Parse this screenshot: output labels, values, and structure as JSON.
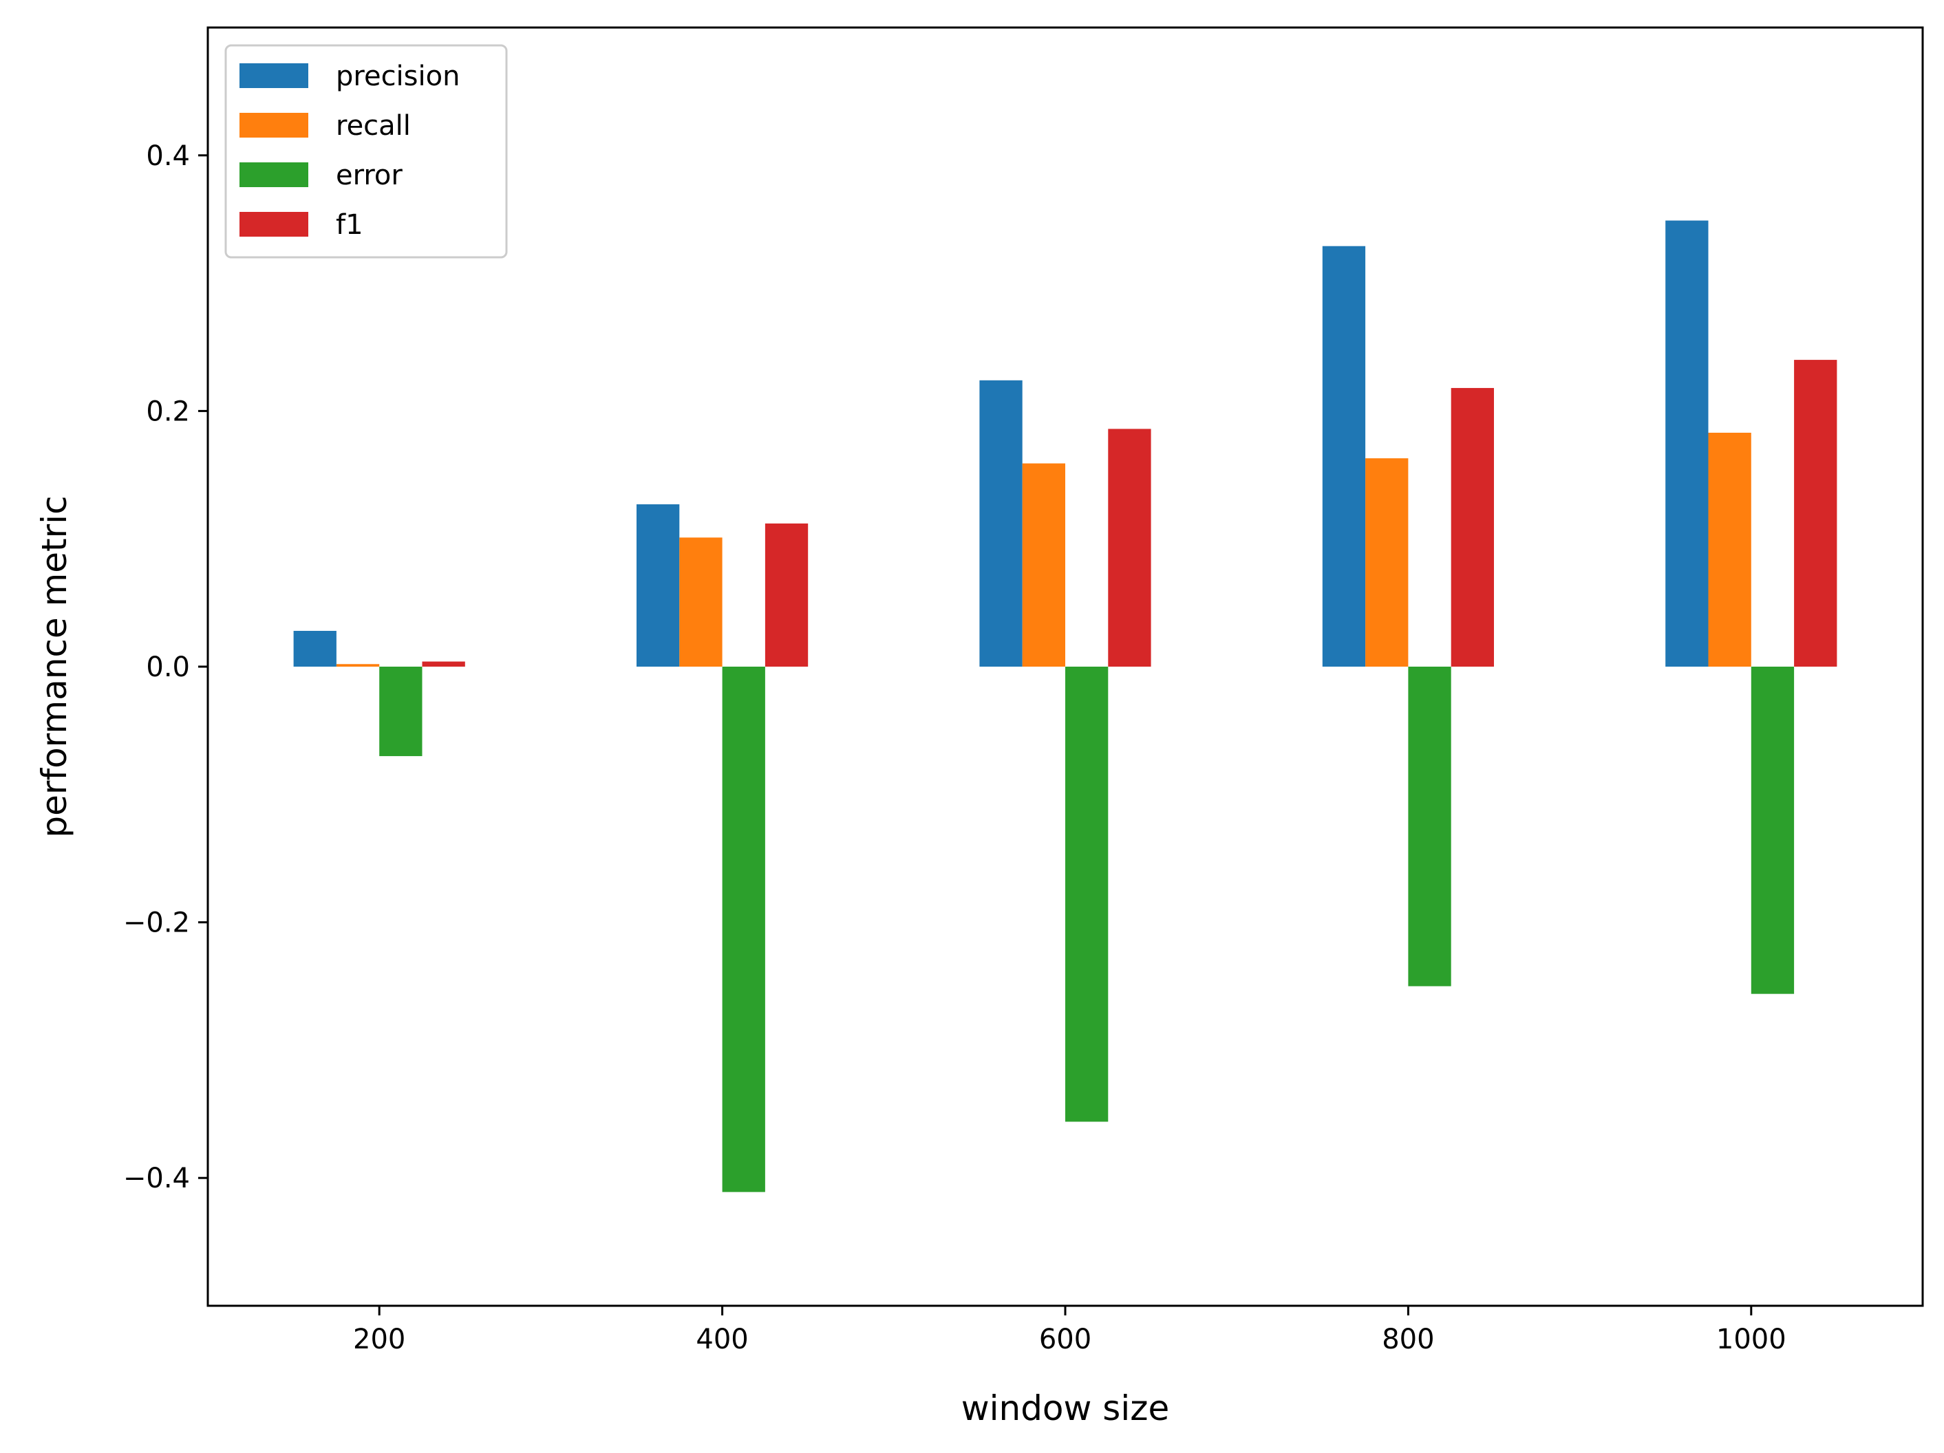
{
  "chart_data": {
    "type": "bar",
    "title": "",
    "xlabel": "window size",
    "ylabel": "performance metric",
    "x": [
      200,
      400,
      600,
      800,
      1000
    ],
    "x_tick_labels": [
      "200",
      "400",
      "600",
      "800",
      "1000"
    ],
    "xlim": [
      100,
      1100
    ],
    "ylim": [
      -0.5,
      0.5
    ],
    "y_ticks": [
      -0.4,
      -0.2,
      0.0,
      0.2,
      0.4
    ],
    "y_tick_labels": [
      "−0.4",
      "−0.2",
      "0.0",
      "0.2",
      "0.4"
    ],
    "bar_width_data": 25,
    "series": [
      {
        "name": "precision",
        "color": "#1f77b4",
        "values": [
          0.028,
          0.127,
          0.224,
          0.329,
          0.349
        ]
      },
      {
        "name": "recall",
        "color": "#ff7f0e",
        "values": [
          0.002,
          0.101,
          0.159,
          0.163,
          0.183
        ]
      },
      {
        "name": "error",
        "color": "#2ca02c",
        "values": [
          -0.07,
          -0.411,
          -0.356,
          -0.25,
          -0.256
        ]
      },
      {
        "name": "f1",
        "color": "#d62728",
        "values": [
          0.004,
          0.112,
          0.186,
          0.218,
          0.24
        ]
      }
    ],
    "grid": false,
    "legend_position": "top-left"
  }
}
